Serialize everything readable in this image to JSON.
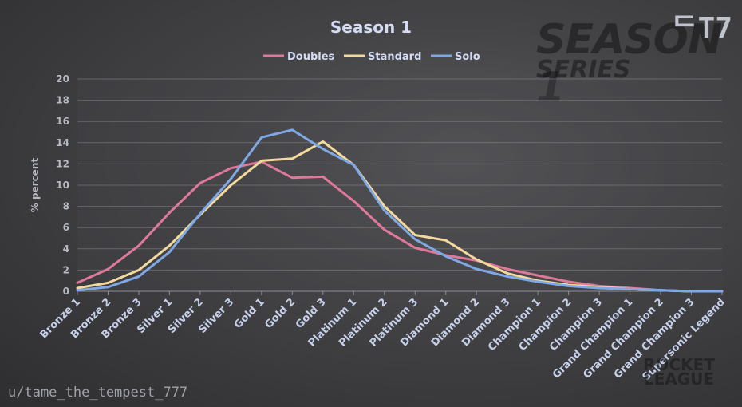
{
  "watermarks": {
    "season_series": "SEASON 1",
    "series": "SERIES",
    "corner": "ᄃT7",
    "username": "u/tame_the_tempest_777",
    "brand_line1": "ROCKET",
    "brand_line2": "LEAGUE"
  },
  "chart_data": {
    "type": "line",
    "title": "Season 1",
    "xlabel": "",
    "ylabel": "% percent",
    "ylim": [
      0,
      20
    ],
    "yticks": [
      0,
      2,
      4,
      6,
      8,
      10,
      12,
      14,
      16,
      18,
      20
    ],
    "grid": true,
    "legend_position": "top-center",
    "categories": [
      "Bronze 1",
      "Bronze 2",
      "Bronze 3",
      "Silver 1",
      "Silver 2",
      "Silver 3",
      "Gold 1",
      "Gold 2",
      "Gold 3",
      "Platinum 1",
      "Platinum 2",
      "Platinum 3",
      "Diamond 1",
      "Diamond 2",
      "Diamond 3",
      "Champion 1",
      "Champion 2",
      "Champion 3",
      "Grand Champion 1",
      "Grand Champion 2",
      "Grand Champion 3",
      "Supersonic Legend"
    ],
    "series": [
      {
        "name": "Doubles",
        "color": "#e0789a",
        "values": [
          0.8,
          2.1,
          4.3,
          7.4,
          10.2,
          11.6,
          12.2,
          10.7,
          10.8,
          8.5,
          5.8,
          4.1,
          3.4,
          2.9,
          2.1,
          1.5,
          0.9,
          0.5,
          0.3,
          0.1,
          0.0,
          0.0
        ]
      },
      {
        "name": "Standard",
        "color": "#f3d99b",
        "values": [
          0.3,
          0.8,
          2.0,
          4.3,
          7.2,
          10.0,
          12.3,
          12.5,
          14.1,
          11.9,
          8.0,
          5.3,
          4.8,
          3.0,
          1.7,
          1.0,
          0.6,
          0.4,
          0.2,
          0.1,
          0.0,
          0.0
        ]
      },
      {
        "name": "Solo",
        "color": "#7ea8e6",
        "values": [
          0.1,
          0.4,
          1.4,
          3.7,
          7.3,
          10.6,
          14.5,
          15.2,
          13.4,
          11.9,
          7.6,
          4.9,
          3.3,
          2.1,
          1.4,
          0.9,
          0.5,
          0.3,
          0.2,
          0.1,
          0.0,
          0.0
        ]
      }
    ]
  }
}
